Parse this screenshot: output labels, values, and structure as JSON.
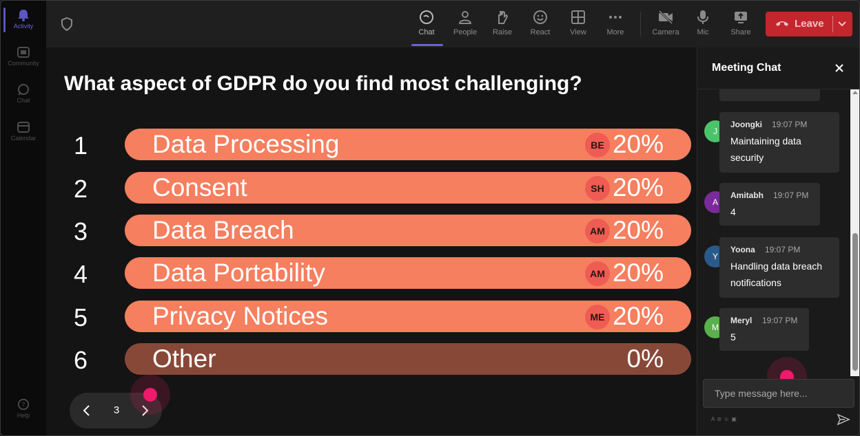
{
  "rail": {
    "items": [
      {
        "label": "Activity",
        "icon": "bell-icon"
      },
      {
        "label": "Community",
        "icon": "community-icon"
      },
      {
        "label": "Chat",
        "icon": "chat-icon"
      },
      {
        "label": "Calendar",
        "icon": "calendar-icon"
      }
    ],
    "help": "Help"
  },
  "toolbar": {
    "chat": "Chat",
    "people": "People",
    "raise": "Raise",
    "react": "React",
    "view": "View",
    "more": "More",
    "camera": "Camera",
    "mic": "Mic",
    "share": "Share",
    "leave": "Leave"
  },
  "poll": {
    "question": "What aspect of GDPR do you find most challenging?",
    "options": [
      {
        "num": "1",
        "label": "Data Processing",
        "avatar": "BE",
        "percent": "20%"
      },
      {
        "num": "2",
        "label": "Consent",
        "avatar": "SH",
        "percent": "20%"
      },
      {
        "num": "3",
        "label": "Data Breach",
        "avatar": "AM",
        "percent": "20%"
      },
      {
        "num": "4",
        "label": "Data Portability",
        "avatar": "AM",
        "percent": "20%"
      },
      {
        "num": "5",
        "label": "Privacy Notices",
        "avatar": "ME",
        "percent": "20%"
      },
      {
        "num": "6",
        "label": "Other",
        "avatar": "",
        "percent": "0%"
      }
    ],
    "page": "3"
  },
  "chat": {
    "title": "Meeting Chat",
    "messages": [
      {
        "initial": "J",
        "author": "Joongki",
        "time": "19:07 PM",
        "text": "Maintaining data security",
        "avatar_color": "#4bc36b"
      },
      {
        "initial": "A",
        "author": "Amitabh",
        "time": "19:07 PM",
        "text": "4",
        "avatar_color": "#7a2a9a"
      },
      {
        "initial": "Y",
        "author": "Yoona",
        "time": "19:07 PM",
        "text": "Handling data breach notifications",
        "avatar_color": "#2a5a8a"
      },
      {
        "initial": "M",
        "author": "Meryl",
        "time": "19:07 PM",
        "text": "5",
        "avatar_color": "#5ab04a"
      }
    ],
    "composer_placeholder": "Type message here..."
  },
  "colors": {
    "accent": "#6b63d6",
    "leave": "#c4262e",
    "bar": "#f57f5f",
    "bar_zero": "#884838",
    "cursor": "#f0196a"
  }
}
